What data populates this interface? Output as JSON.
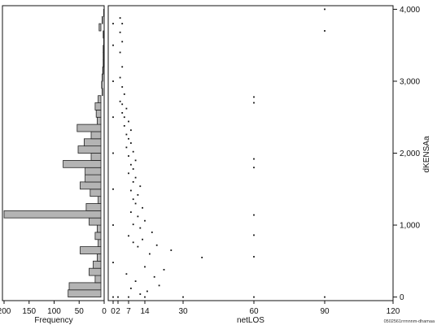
{
  "chart_data": [
    {
      "type": "bar",
      "orientation": "horizontal",
      "xlabel": "Frequency",
      "ylabel": "",
      "xlim": [
        200,
        0
      ],
      "x_ticks": [
        200,
        150,
        100,
        50,
        0
      ],
      "bins": [
        {
          "bin": 0,
          "freq": 72
        },
        {
          "bin": 100,
          "freq": 70
        },
        {
          "bin": 200,
          "freq": 18
        },
        {
          "bin": 300,
          "freq": 30
        },
        {
          "bin": 400,
          "freq": 22
        },
        {
          "bin": 500,
          "freq": 14
        },
        {
          "bin": 600,
          "freq": 48
        },
        {
          "bin": 700,
          "freq": 12
        },
        {
          "bin": 800,
          "freq": 18
        },
        {
          "bin": 900,
          "freq": 14
        },
        {
          "bin": 1000,
          "freq": 30
        },
        {
          "bin": 1100,
          "freq": 200
        },
        {
          "bin": 1200,
          "freq": 36
        },
        {
          "bin": 1300,
          "freq": 12
        },
        {
          "bin": 1400,
          "freq": 28
        },
        {
          "bin": 1500,
          "freq": 48
        },
        {
          "bin": 1600,
          "freq": 38
        },
        {
          "bin": 1700,
          "freq": 38
        },
        {
          "bin": 1800,
          "freq": 82
        },
        {
          "bin": 1900,
          "freq": 26
        },
        {
          "bin": 2000,
          "freq": 52
        },
        {
          "bin": 2100,
          "freq": 40
        },
        {
          "bin": 2200,
          "freq": 26
        },
        {
          "bin": 2300,
          "freq": 54
        },
        {
          "bin": 2400,
          "freq": 14
        },
        {
          "bin": 2500,
          "freq": 16
        },
        {
          "bin": 2600,
          "freq": 18
        },
        {
          "bin": 2700,
          "freq": 12
        },
        {
          "bin": 2800,
          "freq": 4
        },
        {
          "bin": 2900,
          "freq": 5
        },
        {
          "bin": 3000,
          "freq": 4
        },
        {
          "bin": 3100,
          "freq": 3
        },
        {
          "bin": 3200,
          "freq": 2
        },
        {
          "bin": 3300,
          "freq": 2
        },
        {
          "bin": 3400,
          "freq": 2
        },
        {
          "bin": 3500,
          "freq": 1
        },
        {
          "bin": 3600,
          "freq": 2
        },
        {
          "bin": 3700,
          "freq": 10
        },
        {
          "bin": 3800,
          "freq": 4
        },
        {
          "bin": 3900,
          "freq": 1
        }
      ],
      "bin_width": 100,
      "fill_color": "#b4b4b4",
      "edge_color": "#222222"
    },
    {
      "type": "scatter",
      "xlabel": "netLOS",
      "ylabel": "dKENSAa",
      "xlim": [
        -1,
        120
      ],
      "ylim": [
        -50,
        4050
      ],
      "x_ticks": [
        0,
        2,
        7,
        14,
        30,
        60,
        90,
        120
      ],
      "x_tick_labels": [
        "0",
        "2",
        "7",
        "14",
        "30",
        "60",
        "90",
        "120"
      ],
      "y_ticks": [
        0,
        1000,
        2000,
        3000,
        4000
      ],
      "y_tick_labels": [
        "0",
        "1,000",
        "2,000",
        "3,000",
        "4,000"
      ],
      "y_axis_side": "right",
      "grid": false,
      "marker_color": "#111111",
      "points": [
        [
          12,
          40
        ],
        [
          15,
          80
        ],
        [
          8,
          120
        ],
        [
          20,
          160
        ],
        [
          10,
          220
        ],
        [
          18,
          280
        ],
        [
          6,
          320
        ],
        [
          22,
          380
        ],
        [
          14,
          420
        ],
        [
          38,
          550
        ],
        [
          16,
          600
        ],
        [
          25,
          650
        ],
        [
          11,
          700
        ],
        [
          19,
          720
        ],
        [
          9,
          760
        ],
        [
          13,
          800
        ],
        [
          7,
          850
        ],
        [
          17,
          900
        ],
        [
          12,
          960
        ],
        [
          9,
          1010
        ],
        [
          14,
          1060
        ],
        [
          11,
          1120
        ],
        [
          8,
          1180
        ],
        [
          13,
          1240
        ],
        [
          10,
          1300
        ],
        [
          9,
          1360
        ],
        [
          11,
          1420
        ],
        [
          8,
          1480
        ],
        [
          12,
          1540
        ],
        [
          9,
          1600
        ],
        [
          10,
          1660
        ],
        [
          7,
          1720
        ],
        [
          9,
          1780
        ],
        [
          8,
          1840
        ],
        [
          10,
          1900
        ],
        [
          7,
          1960
        ],
        [
          9,
          2020
        ],
        [
          6,
          2080
        ],
        [
          8,
          2140
        ],
        [
          7,
          2200
        ],
        [
          6,
          2260
        ],
        [
          8,
          2320
        ],
        [
          5,
          2380
        ],
        [
          7,
          2440
        ],
        [
          5,
          2500
        ],
        [
          4,
          2560
        ],
        [
          6,
          2620
        ],
        [
          4,
          2680
        ],
        [
          3,
          2720
        ],
        [
          5,
          2820
        ],
        [
          4,
          2920
        ],
        [
          3,
          3050
        ],
        [
          4,
          3200
        ],
        [
          3,
          3400
        ],
        [
          4,
          3550
        ],
        [
          3,
          3680
        ],
        [
          4,
          3800
        ],
        [
          3,
          3880
        ],
        [
          60,
          0
        ],
        [
          60,
          560
        ],
        [
          60,
          860
        ],
        [
          60,
          1140
        ],
        [
          60,
          1800
        ],
        [
          60,
          1920
        ],
        [
          60,
          2700
        ],
        [
          60,
          2780
        ],
        [
          90,
          0
        ],
        [
          90,
          3700
        ],
        [
          90,
          4000
        ],
        [
          30,
          0
        ],
        [
          14,
          0
        ],
        [
          7,
          0
        ],
        [
          2,
          0
        ],
        [
          0,
          0
        ],
        [
          0,
          480
        ],
        [
          0,
          1000
        ],
        [
          0,
          1500
        ],
        [
          0,
          2000
        ],
        [
          0,
          2500
        ],
        [
          0,
          3000
        ],
        [
          0,
          3500
        ],
        [
          0,
          3800
        ]
      ]
    }
  ],
  "footnote": "0502561rrrnnnm-dhamaa"
}
